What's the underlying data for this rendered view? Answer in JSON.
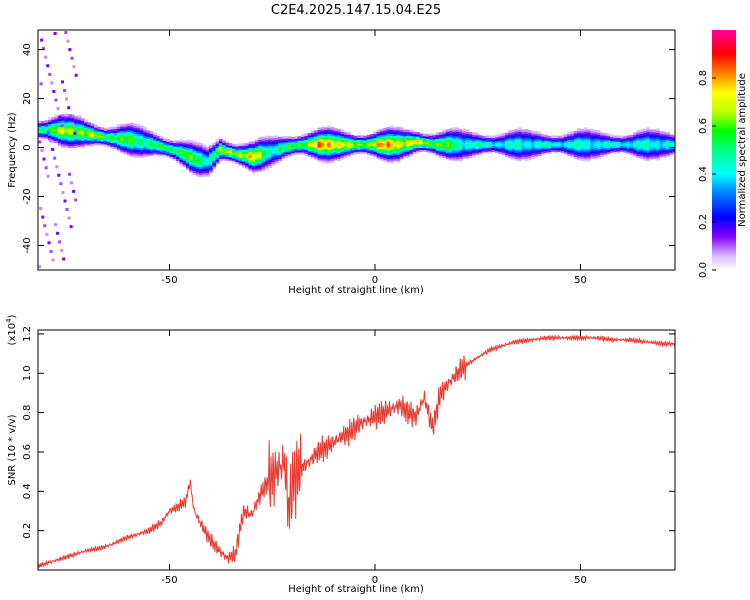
{
  "title": "C2E4.2025.147.15.04.E25",
  "colors": {
    "line": "#e83a30",
    "frame": "#000000"
  },
  "chart_data": [
    {
      "type": "heatmap",
      "xlabel": "Height of straight line (km)",
      "ylabel": "Frequency (Hz)",
      "xlim": [
        -82,
        73
      ],
      "ylim": [
        -50,
        48
      ],
      "xticks": [
        -50,
        0,
        50
      ],
      "xtick_labels": [
        "-50",
        "0",
        "50"
      ],
      "yticks": [
        -40,
        -20,
        0,
        20,
        40
      ],
      "ytick_labels": [
        "-40",
        "-20",
        "0",
        "20",
        "40"
      ],
      "colorbar": {
        "label": "Normalized spectral amplitude",
        "range": [
          0,
          1
        ],
        "ticks": [
          0.0,
          0.2,
          0.4,
          0.6,
          0.8
        ],
        "tick_labels": [
          "0.0",
          "0.2",
          "0.4",
          "0.6",
          "0.8"
        ],
        "colormap": "rainbow (white-purple-blue-cyan-green-yellow-red-magenta)"
      },
      "ridge": {
        "x": [
          -82,
          -78,
          -72,
          -66,
          -60,
          -54,
          -48,
          -44,
          -41,
          -38,
          -34,
          -30,
          -26,
          -22,
          -18,
          -14,
          -10,
          -5,
          0,
          5,
          10,
          15,
          20,
          30,
          40,
          50,
          60,
          73
        ],
        "freq": [
          7,
          7,
          6,
          4,
          3,
          1,
          -2,
          -5,
          -6,
          -1,
          -3,
          -4,
          -2,
          0,
          1,
          1,
          1,
          1,
          1,
          1,
          2,
          1,
          1,
          1,
          1,
          1,
          1,
          1
        ],
        "amplitude": [
          0.6,
          0.75,
          0.8,
          0.7,
          0.65,
          0.6,
          0.7,
          0.65,
          0.55,
          0.7,
          0.85,
          0.85,
          0.55,
          0.6,
          0.75,
          0.9,
          0.95,
          0.7,
          0.9,
          0.9,
          0.8,
          0.75,
          0.55,
          0.5,
          0.5,
          0.5,
          0.5,
          0.5
        ]
      }
    },
    {
      "type": "line",
      "xlabel": "Height of straight line (km)",
      "ylabel": "SNR (10 * v/v)",
      "y_multiplier": "(x10^4)",
      "y_multiplier_base": "(x10",
      "y_multiplier_exp": "4",
      "y_multiplier_close": ")",
      "xlim": [
        -82,
        73
      ],
      "ylim": [
        0,
        1.22
      ],
      "xticks": [
        -50,
        0,
        50
      ],
      "xtick_labels": [
        "-50",
        "0",
        "50"
      ],
      "yticks": [
        0.2,
        0.4,
        0.6,
        0.8,
        1.0,
        1.2
      ],
      "ytick_labels": [
        "0.2",
        "0.4",
        "0.6",
        "0.8",
        "1.0",
        "1.2"
      ],
      "series": [
        {
          "x": [
            -82,
            -79,
            -76,
            -73,
            -70,
            -67,
            -64,
            -61,
            -58,
            -55,
            -52,
            -50,
            -48,
            -46,
            -45,
            -44,
            -42,
            -40,
            -38,
            -36,
            -34,
            -32,
            -30,
            -28,
            -26,
            -24,
            -22,
            -21,
            -20,
            -18,
            -16,
            -14,
            -12,
            -10,
            -8,
            -6,
            -4,
            -2,
            0,
            2,
            4,
            6,
            8,
            10,
            12,
            14,
            16,
            18,
            20,
            22,
            25,
            28,
            31,
            34,
            38,
            42,
            46,
            50,
            54,
            58,
            62,
            66,
            70,
            73
          ],
          "y": [
            0.02,
            0.04,
            0.06,
            0.08,
            0.1,
            0.11,
            0.13,
            0.16,
            0.18,
            0.2,
            0.24,
            0.3,
            0.32,
            0.35,
            0.45,
            0.3,
            0.22,
            0.15,
            0.1,
            0.06,
            0.08,
            0.3,
            0.28,
            0.38,
            0.45,
            0.5,
            0.55,
            0.3,
            0.45,
            0.52,
            0.55,
            0.6,
            0.62,
            0.65,
            0.68,
            0.7,
            0.74,
            0.76,
            0.78,
            0.8,
            0.82,
            0.84,
            0.8,
            0.78,
            0.88,
            0.72,
            0.9,
            0.95,
            1.0,
            1.04,
            1.08,
            1.12,
            1.14,
            1.16,
            1.17,
            1.18,
            1.18,
            1.18,
            1.18,
            1.17,
            1.17,
            1.16,
            1.15,
            1.15
          ]
        }
      ]
    }
  ]
}
